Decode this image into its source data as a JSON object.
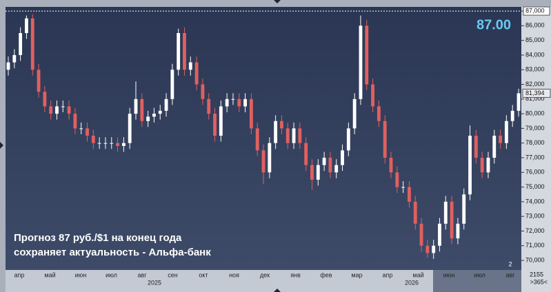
{
  "chart_data": {
    "type": "candlestick",
    "annotation": [
      "Прогноз 87 руб./$1 на конец года",
      "сохраняет актуальность - Альфа-банк"
    ],
    "target": {
      "value": 87000,
      "label": "87.00"
    },
    "last": {
      "value": 81394,
      "label": "81,394"
    },
    "badge": "2",
    "corner_text": [
      "2155",
      ">365<"
    ],
    "month_labels": [
      "апр",
      "май",
      "июн",
      "июл",
      "авг",
      "сен",
      "окт",
      "ноя",
      "дек",
      "янв",
      "фев",
      "мар",
      "апр",
      "май",
      "июн",
      "июл",
      "авг"
    ],
    "year_labels": [
      "2025",
      "2026"
    ],
    "up_color": "#ffffff",
    "down_color": "#e06060",
    "ylim": [
      69440,
      87050
    ],
    "yticks": [
      {
        "value": 70000,
        "label": "70,000"
      },
      {
        "value": 71000,
        "label": "71,000"
      },
      {
        "value": 72000,
        "label": "72,000"
      },
      {
        "value": 73000,
        "label": "73,000"
      },
      {
        "value": 74000,
        "label": "74,000"
      },
      {
        "value": 75000,
        "label": "75,000"
      },
      {
        "value": 76000,
        "label": "76,000"
      },
      {
        "value": 77000,
        "label": "77,000"
      },
      {
        "value": 78000,
        "label": "78,000"
      },
      {
        "value": 79000,
        "label": "79,000"
      },
      {
        "value": 80000,
        "label": "80,000"
      },
      {
        "value": 81000,
        "label": "81,000"
      },
      {
        "value": 82000,
        "label": "82,000"
      },
      {
        "value": 83000,
        "label": "83,000"
      },
      {
        "value": 84000,
        "label": "84,000"
      },
      {
        "value": 85000,
        "label": "85,000"
      },
      {
        "value": 86000,
        "label": "86,000"
      },
      {
        "value": 87000,
        "label": "87,000"
      }
    ],
    "open": [
      83000,
      83500,
      84000,
      85500,
      86500,
      83000,
      81500,
      80500,
      80000,
      80500,
      80500,
      80000,
      79000,
      79000,
      78500,
      78000,
      78000,
      78000,
      78000,
      77800,
      78000,
      80000,
      81000,
      79500,
      79800,
      80000,
      80200,
      81000,
      83000,
      85500,
      83000,
      83500,
      82000,
      81000,
      80000,
      78500,
      80500,
      81000,
      81000,
      80500,
      81000,
      79000,
      77500,
      76000,
      78000,
      79500,
      79000,
      78000,
      79000,
      78000,
      76500,
      75500,
      76500,
      77000,
      76000,
      76500,
      77500,
      79000,
      81000,
      86000,
      82000,
      80500,
      79500,
      77000,
      76000,
      75000,
      75000,
      74000,
      72500,
      71000,
      70500,
      71000,
      72500,
      74000,
      71500,
      72500,
      74500,
      78500,
      77000,
      76000,
      77000,
      78500,
      78000,
      79500,
      80200
    ],
    "high": [
      83900,
      84400,
      85900,
      86700,
      86800,
      83400,
      81900,
      80900,
      80900,
      80900,
      80900,
      80400,
      79400,
      79400,
      78900,
      78400,
      78400,
      78400,
      78400,
      78400,
      80400,
      82200,
      81400,
      80200,
      80400,
      80600,
      81400,
      83400,
      85800,
      85900,
      83900,
      83900,
      82400,
      81400,
      80400,
      80900,
      81400,
      81400,
      81400,
      81400,
      81400,
      79400,
      77900,
      78400,
      79900,
      79900,
      79400,
      79400,
      79400,
      78400,
      76900,
      76900,
      77400,
      77400,
      76900,
      77900,
      79400,
      81400,
      86700,
      86400,
      82400,
      80900,
      79900,
      77400,
      76400,
      75400,
      75400,
      74400,
      72900,
      71400,
      71400,
      72900,
      74400,
      74400,
      72900,
      74900,
      79200,
      78900,
      77400,
      77400,
      78900,
      78900,
      79900,
      80600,
      81700
    ],
    "low": [
      82600,
      83100,
      83600,
      85100,
      82600,
      81100,
      80100,
      79600,
      79600,
      80100,
      79600,
      78600,
      78600,
      78100,
      77600,
      77600,
      77600,
      77600,
      77400,
      77400,
      77600,
      79600,
      79100,
      79100,
      79400,
      79600,
      79800,
      80600,
      82600,
      82600,
      82600,
      81600,
      80600,
      79600,
      78100,
      78100,
      80100,
      80600,
      80100,
      80100,
      78600,
      77100,
      75200,
      75600,
      77600,
      78600,
      77600,
      77600,
      77600,
      76100,
      74800,
      75100,
      76100,
      75600,
      75600,
      76100,
      77100,
      78600,
      80600,
      81600,
      80100,
      79100,
      76600,
      75600,
      74600,
      74600,
      73600,
      72100,
      70600,
      70200,
      70100,
      70600,
      72100,
      71100,
      71100,
      72100,
      74100,
      76600,
      75600,
      75600,
      76600,
      77600,
      77600,
      79100,
      79800
    ],
    "close": [
      83500,
      84000,
      85500,
      86500,
      83000,
      81500,
      80500,
      80000,
      80500,
      80500,
      80000,
      79000,
      79000,
      78500,
      78000,
      78000,
      78000,
      78000,
      77800,
      78000,
      80000,
      81000,
      79500,
      79800,
      80000,
      80200,
      81000,
      83000,
      85500,
      83000,
      83500,
      82000,
      81000,
      80000,
      78500,
      80500,
      81000,
      81000,
      80500,
      81000,
      79000,
      77500,
      76000,
      78000,
      79500,
      79000,
      78000,
      79000,
      78000,
      76500,
      75500,
      76500,
      77000,
      76000,
      76500,
      77500,
      79000,
      81000,
      86000,
      82000,
      80500,
      79500,
      77000,
      76000,
      75000,
      75000,
      74000,
      72500,
      71000,
      70500,
      71000,
      72500,
      74000,
      71500,
      72500,
      74500,
      78500,
      77000,
      76000,
      77000,
      78500,
      78000,
      79500,
      80200,
      81394
    ]
  }
}
